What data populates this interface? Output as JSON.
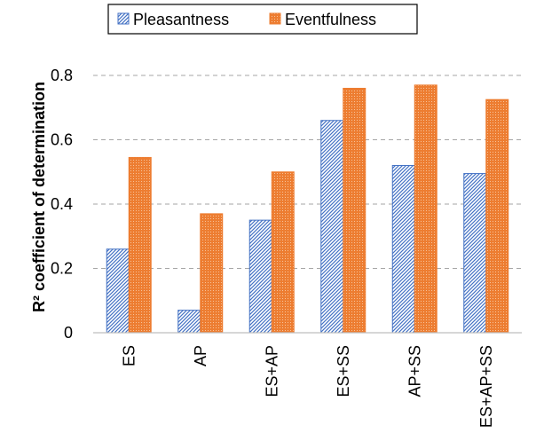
{
  "chart_data": {
    "type": "bar",
    "categories": [
      "ES",
      "AP",
      "ES+AP",
      "ES+SS",
      "AP+SS",
      "ES+AP+SS"
    ],
    "series": [
      {
        "name": "Pleasantness",
        "values": [
          0.26,
          0.07,
          0.35,
          0.66,
          0.52,
          0.495
        ],
        "color": "#4472C4"
      },
      {
        "name": "Eventfulness",
        "values": [
          0.545,
          0.37,
          0.5,
          0.76,
          0.77,
          0.725
        ],
        "color": "#ED7D31"
      }
    ],
    "ylabel": "R² coefficient of determination",
    "xlabel": "",
    "ylim": [
      0,
      0.8
    ],
    "yticks": [
      "0",
      "0.2",
      "0.4",
      "0.6",
      "0.8"
    ],
    "grid": true,
    "legend": "top"
  }
}
